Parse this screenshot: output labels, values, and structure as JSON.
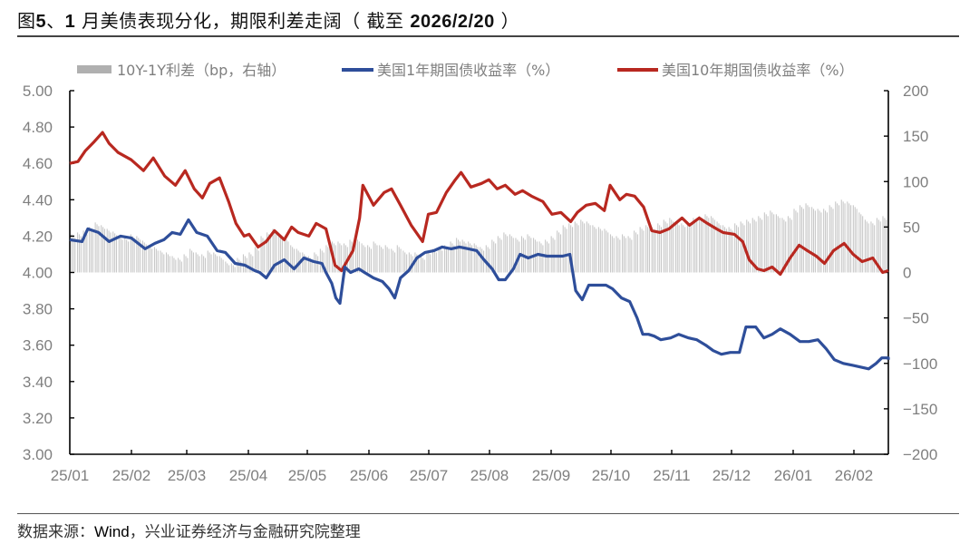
{
  "header": {
    "title_prefix": "图",
    "title_num": "5",
    "title_sep": "、",
    "title_month": "1",
    "title_text": " 月美债表现分化，期限利差走阔（ 截至 ",
    "title_date": "2026/2/20",
    "title_close": " ）"
  },
  "footer": {
    "source_label": "数据来源：",
    "source_wind": "Wind",
    "source_rest": "，兴业证券经济与金融研究院整理"
  },
  "colors": {
    "us1y": "#2E4E9A",
    "us10y": "#B82820",
    "spread": "#C8C8C8",
    "axis": "#000000",
    "tick_text": "#7F7F7F"
  },
  "chart_data": {
    "type": "line+bar",
    "title": "图5、1 月美债表现分化，期限利差走阔（ 截至 2026/2/20 ）",
    "legend": [
      {
        "name": "10Y-1Y利差（bp，右轴）",
        "type": "bar",
        "color": "#C8C8C8"
      },
      {
        "name": "美国1年期国债收益率（%）",
        "type": "line",
        "color": "#2E4E9A"
      },
      {
        "name": "美国10年期国债收益率（%）",
        "type": "line",
        "color": "#B82820"
      }
    ],
    "legend_position": "top",
    "grid": false,
    "x_ticks": [
      "25/01",
      "25/02",
      "25/03",
      "25/04",
      "25/05",
      "25/06",
      "25/07",
      "25/08",
      "25/09",
      "25/10",
      "25/11",
      "25/12",
      "26/01",
      "26/02"
    ],
    "y_left": {
      "label": "%",
      "min": 3.0,
      "max": 5.0,
      "ticks": [
        "5.00",
        "4.80",
        "4.60",
        "4.40",
        "4.20",
        "4.00",
        "3.80",
        "3.60",
        "3.40",
        "3.20",
        "3.00"
      ]
    },
    "y_right": {
      "label": "bp",
      "min": -200,
      "max": 200,
      "ticks": [
        "200",
        "150",
        "100",
        "50",
        "0",
        "−50",
        "−100",
        "−150",
        "−200"
      ]
    },
    "x_fraction_note": "x values are fraction of time from 2025-01-01 (0) to 2026-02-20 (1)",
    "series": [
      {
        "name": "美国10年期国债收益率（%）",
        "axis": "left",
        "points": [
          [
            0.0,
            4.6
          ],
          [
            0.01,
            4.61
          ],
          [
            0.019,
            4.67
          ],
          [
            0.03,
            4.72
          ],
          [
            0.04,
            4.77
          ],
          [
            0.048,
            4.71
          ],
          [
            0.059,
            4.66
          ],
          [
            0.075,
            4.62
          ],
          [
            0.09,
            4.56
          ],
          [
            0.102,
            4.63
          ],
          [
            0.116,
            4.53
          ],
          [
            0.129,
            4.48
          ],
          [
            0.141,
            4.56
          ],
          [
            0.152,
            4.46
          ],
          [
            0.162,
            4.41
          ],
          [
            0.171,
            4.49
          ],
          [
            0.183,
            4.52
          ],
          [
            0.194,
            4.39
          ],
          [
            0.203,
            4.27
          ],
          [
            0.213,
            4.2
          ],
          [
            0.219,
            4.21
          ],
          [
            0.23,
            4.14
          ],
          [
            0.24,
            4.17
          ],
          [
            0.25,
            4.23
          ],
          [
            0.262,
            4.18
          ],
          [
            0.271,
            4.25
          ],
          [
            0.279,
            4.22
          ],
          [
            0.292,
            4.2
          ],
          [
            0.301,
            4.27
          ],
          [
            0.313,
            4.24
          ],
          [
            0.324,
            4.04
          ],
          [
            0.332,
            4.01
          ],
          [
            0.346,
            4.12
          ],
          [
            0.354,
            4.3
          ],
          [
            0.358,
            4.48
          ],
          [
            0.371,
            4.37
          ],
          [
            0.384,
            4.44
          ],
          [
            0.393,
            4.46
          ],
          [
            0.404,
            4.37
          ],
          [
            0.417,
            4.26
          ],
          [
            0.431,
            4.17
          ],
          [
            0.438,
            4.32
          ],
          [
            0.448,
            4.33
          ],
          [
            0.46,
            4.44
          ],
          [
            0.471,
            4.51
          ],
          [
            0.478,
            4.55
          ],
          [
            0.49,
            4.47
          ],
          [
            0.503,
            4.49
          ],
          [
            0.512,
            4.51
          ],
          [
            0.522,
            4.46
          ],
          [
            0.532,
            4.48
          ],
          [
            0.544,
            4.43
          ],
          [
            0.553,
            4.45
          ],
          [
            0.564,
            4.42
          ],
          [
            0.578,
            4.39
          ],
          [
            0.589,
            4.32
          ],
          [
            0.6,
            4.33
          ],
          [
            0.612,
            4.28
          ],
          [
            0.62,
            4.33
          ],
          [
            0.631,
            4.37
          ],
          [
            0.642,
            4.38
          ],
          [
            0.653,
            4.34
          ],
          [
            0.66,
            4.48
          ],
          [
            0.672,
            4.4
          ],
          [
            0.68,
            4.43
          ],
          [
            0.69,
            4.42
          ],
          [
            0.701,
            4.36
          ],
          [
            0.711,
            4.23
          ],
          [
            0.721,
            4.22
          ],
          [
            0.732,
            4.24
          ],
          [
            0.748,
            4.3
          ],
          [
            0.757,
            4.26
          ],
          [
            0.769,
            4.3
          ],
          [
            0.779,
            4.27
          ],
          [
            0.79,
            4.24
          ],
          [
            0.798,
            4.22
          ],
          [
            0.812,
            4.21
          ],
          [
            0.822,
            4.17
          ],
          [
            0.83,
            4.07
          ],
          [
            0.84,
            4.02
          ],
          [
            0.848,
            4.01
          ],
          [
            0.858,
            4.03
          ],
          [
            0.868,
            3.99
          ],
          [
            0.88,
            4.08
          ],
          [
            0.891,
            4.15
          ],
          [
            0.901,
            4.12
          ],
          [
            0.912,
            4.09
          ],
          [
            0.922,
            4.05
          ],
          [
            0.933,
            4.12
          ],
          [
            0.946,
            4.16
          ],
          [
            0.957,
            4.1
          ],
          [
            0.968,
            4.06
          ],
          [
            0.981,
            4.08
          ],
          [
            0.993,
            4.0
          ],
          [
            1.0,
            4.01
          ]
        ]
      },
      {
        "name": "美国1年期国债收益率（%）",
        "axis": "left",
        "points": [
          [
            0.0,
            4.18
          ],
          [
            0.015,
            4.17
          ],
          [
            0.022,
            4.24
          ],
          [
            0.035,
            4.22
          ],
          [
            0.048,
            4.17
          ],
          [
            0.062,
            4.2
          ],
          [
            0.075,
            4.19
          ],
          [
            0.092,
            4.13
          ],
          [
            0.104,
            4.16
          ],
          [
            0.115,
            4.18
          ],
          [
            0.125,
            4.22
          ],
          [
            0.135,
            4.21
          ],
          [
            0.145,
            4.29
          ],
          [
            0.155,
            4.22
          ],
          [
            0.168,
            4.2
          ],
          [
            0.18,
            4.12
          ],
          [
            0.19,
            4.11
          ],
          [
            0.202,
            4.05
          ],
          [
            0.214,
            4.04
          ],
          [
            0.226,
            4.01
          ],
          [
            0.232,
            4.0
          ],
          [
            0.24,
            3.97
          ],
          [
            0.25,
            4.04
          ],
          [
            0.262,
            4.07
          ],
          [
            0.274,
            4.02
          ],
          [
            0.286,
            4.08
          ],
          [
            0.298,
            4.06
          ],
          [
            0.308,
            4.05
          ],
          [
            0.313,
            4.0
          ],
          [
            0.32,
            3.94
          ],
          [
            0.325,
            3.86
          ],
          [
            0.33,
            3.83
          ],
          [
            0.336,
            4.03
          ],
          [
            0.343,
            4.0
          ],
          [
            0.353,
            4.02
          ],
          [
            0.36,
            4.0
          ],
          [
            0.371,
            3.97
          ],
          [
            0.382,
            3.95
          ],
          [
            0.39,
            3.91
          ],
          [
            0.397,
            3.86
          ],
          [
            0.404,
            3.97
          ],
          [
            0.414,
            4.01
          ],
          [
            0.424,
            4.08
          ],
          [
            0.434,
            4.11
          ],
          [
            0.445,
            4.12
          ],
          [
            0.455,
            4.14
          ],
          [
            0.466,
            4.13
          ],
          [
            0.476,
            4.14
          ],
          [
            0.487,
            4.13
          ],
          [
            0.497,
            4.12
          ],
          [
            0.506,
            4.07
          ],
          [
            0.516,
            4.02
          ],
          [
            0.524,
            3.96
          ],
          [
            0.532,
            3.96
          ],
          [
            0.542,
            4.02
          ],
          [
            0.55,
            4.1
          ],
          [
            0.56,
            4.08
          ],
          [
            0.572,
            4.1
          ],
          [
            0.583,
            4.09
          ],
          [
            0.593,
            4.09
          ],
          [
            0.602,
            4.09
          ],
          [
            0.611,
            4.1
          ],
          [
            0.618,
            3.9
          ],
          [
            0.626,
            3.85
          ],
          [
            0.634,
            3.93
          ],
          [
            0.645,
            3.93
          ],
          [
            0.655,
            3.93
          ],
          [
            0.663,
            3.91
          ],
          [
            0.674,
            3.86
          ],
          [
            0.684,
            3.84
          ],
          [
            0.693,
            3.75
          ],
          [
            0.7,
            3.66
          ],
          [
            0.707,
            3.66
          ],
          [
            0.714,
            3.65
          ],
          [
            0.722,
            3.63
          ],
          [
            0.734,
            3.64
          ],
          [
            0.744,
            3.66
          ],
          [
            0.756,
            3.64
          ],
          [
            0.766,
            3.63
          ],
          [
            0.777,
            3.6
          ],
          [
            0.786,
            3.57
          ],
          [
            0.796,
            3.55
          ],
          [
            0.807,
            3.56
          ],
          [
            0.818,
            3.56
          ],
          [
            0.826,
            3.7
          ],
          [
            0.838,
            3.7
          ],
          [
            0.848,
            3.64
          ],
          [
            0.858,
            3.66
          ],
          [
            0.868,
            3.69
          ],
          [
            0.88,
            3.66
          ],
          [
            0.892,
            3.62
          ],
          [
            0.903,
            3.62
          ],
          [
            0.914,
            3.63
          ],
          [
            0.924,
            3.58
          ],
          [
            0.934,
            3.52
          ],
          [
            0.945,
            3.5
          ],
          [
            0.956,
            3.49
          ],
          [
            0.966,
            3.48
          ],
          [
            0.976,
            3.47
          ],
          [
            0.985,
            3.5
          ],
          [
            0.992,
            3.53
          ],
          [
            1.0,
            3.53
          ],
          [
            1.01,
            3.52
          ]
        ]
      },
      {
        "name": "10Y-1Y利差（bp，右轴）",
        "axis": "right",
        "points_note": "daily bars between 0 and values listed",
        "values_bp": [
          42,
          44,
          46,
          50,
          55,
          52,
          48,
          45,
          40,
          38,
          42,
          40,
          35,
          30,
          28,
          24,
          22,
          18,
          16,
          20,
          26,
          22,
          20,
          24,
          22,
          18,
          12,
          10,
          16,
          20,
          22,
          28,
          40,
          44,
          48,
          42,
          38,
          30,
          26,
          22,
          18,
          22,
          26,
          30,
          34,
          34,
          32,
          36,
          38,
          32,
          30,
          34,
          30,
          30,
          26,
          30,
          24,
          22,
          22,
          18,
          24,
          26,
          28,
          30,
          34,
          38,
          36,
          34,
          32,
          28,
          30,
          36,
          40,
          44,
          42,
          38,
          40,
          42,
          38,
          34,
          36,
          40,
          46,
          52,
          54,
          56,
          58,
          56,
          52,
          50,
          48,
          42,
          40,
          42,
          40,
          46,
          50,
          52,
          50,
          54,
          58,
          60,
          56,
          54,
          56,
          60,
          62,
          64,
          62,
          56,
          52,
          50,
          54,
          56,
          58,
          60,
          62,
          66,
          68,
          64,
          60,
          62,
          70,
          74,
          76,
          72,
          70,
          70,
          74,
          78,
          80,
          78,
          74,
          66,
          58,
          56,
          60,
          62
        ]
      }
    ]
  }
}
